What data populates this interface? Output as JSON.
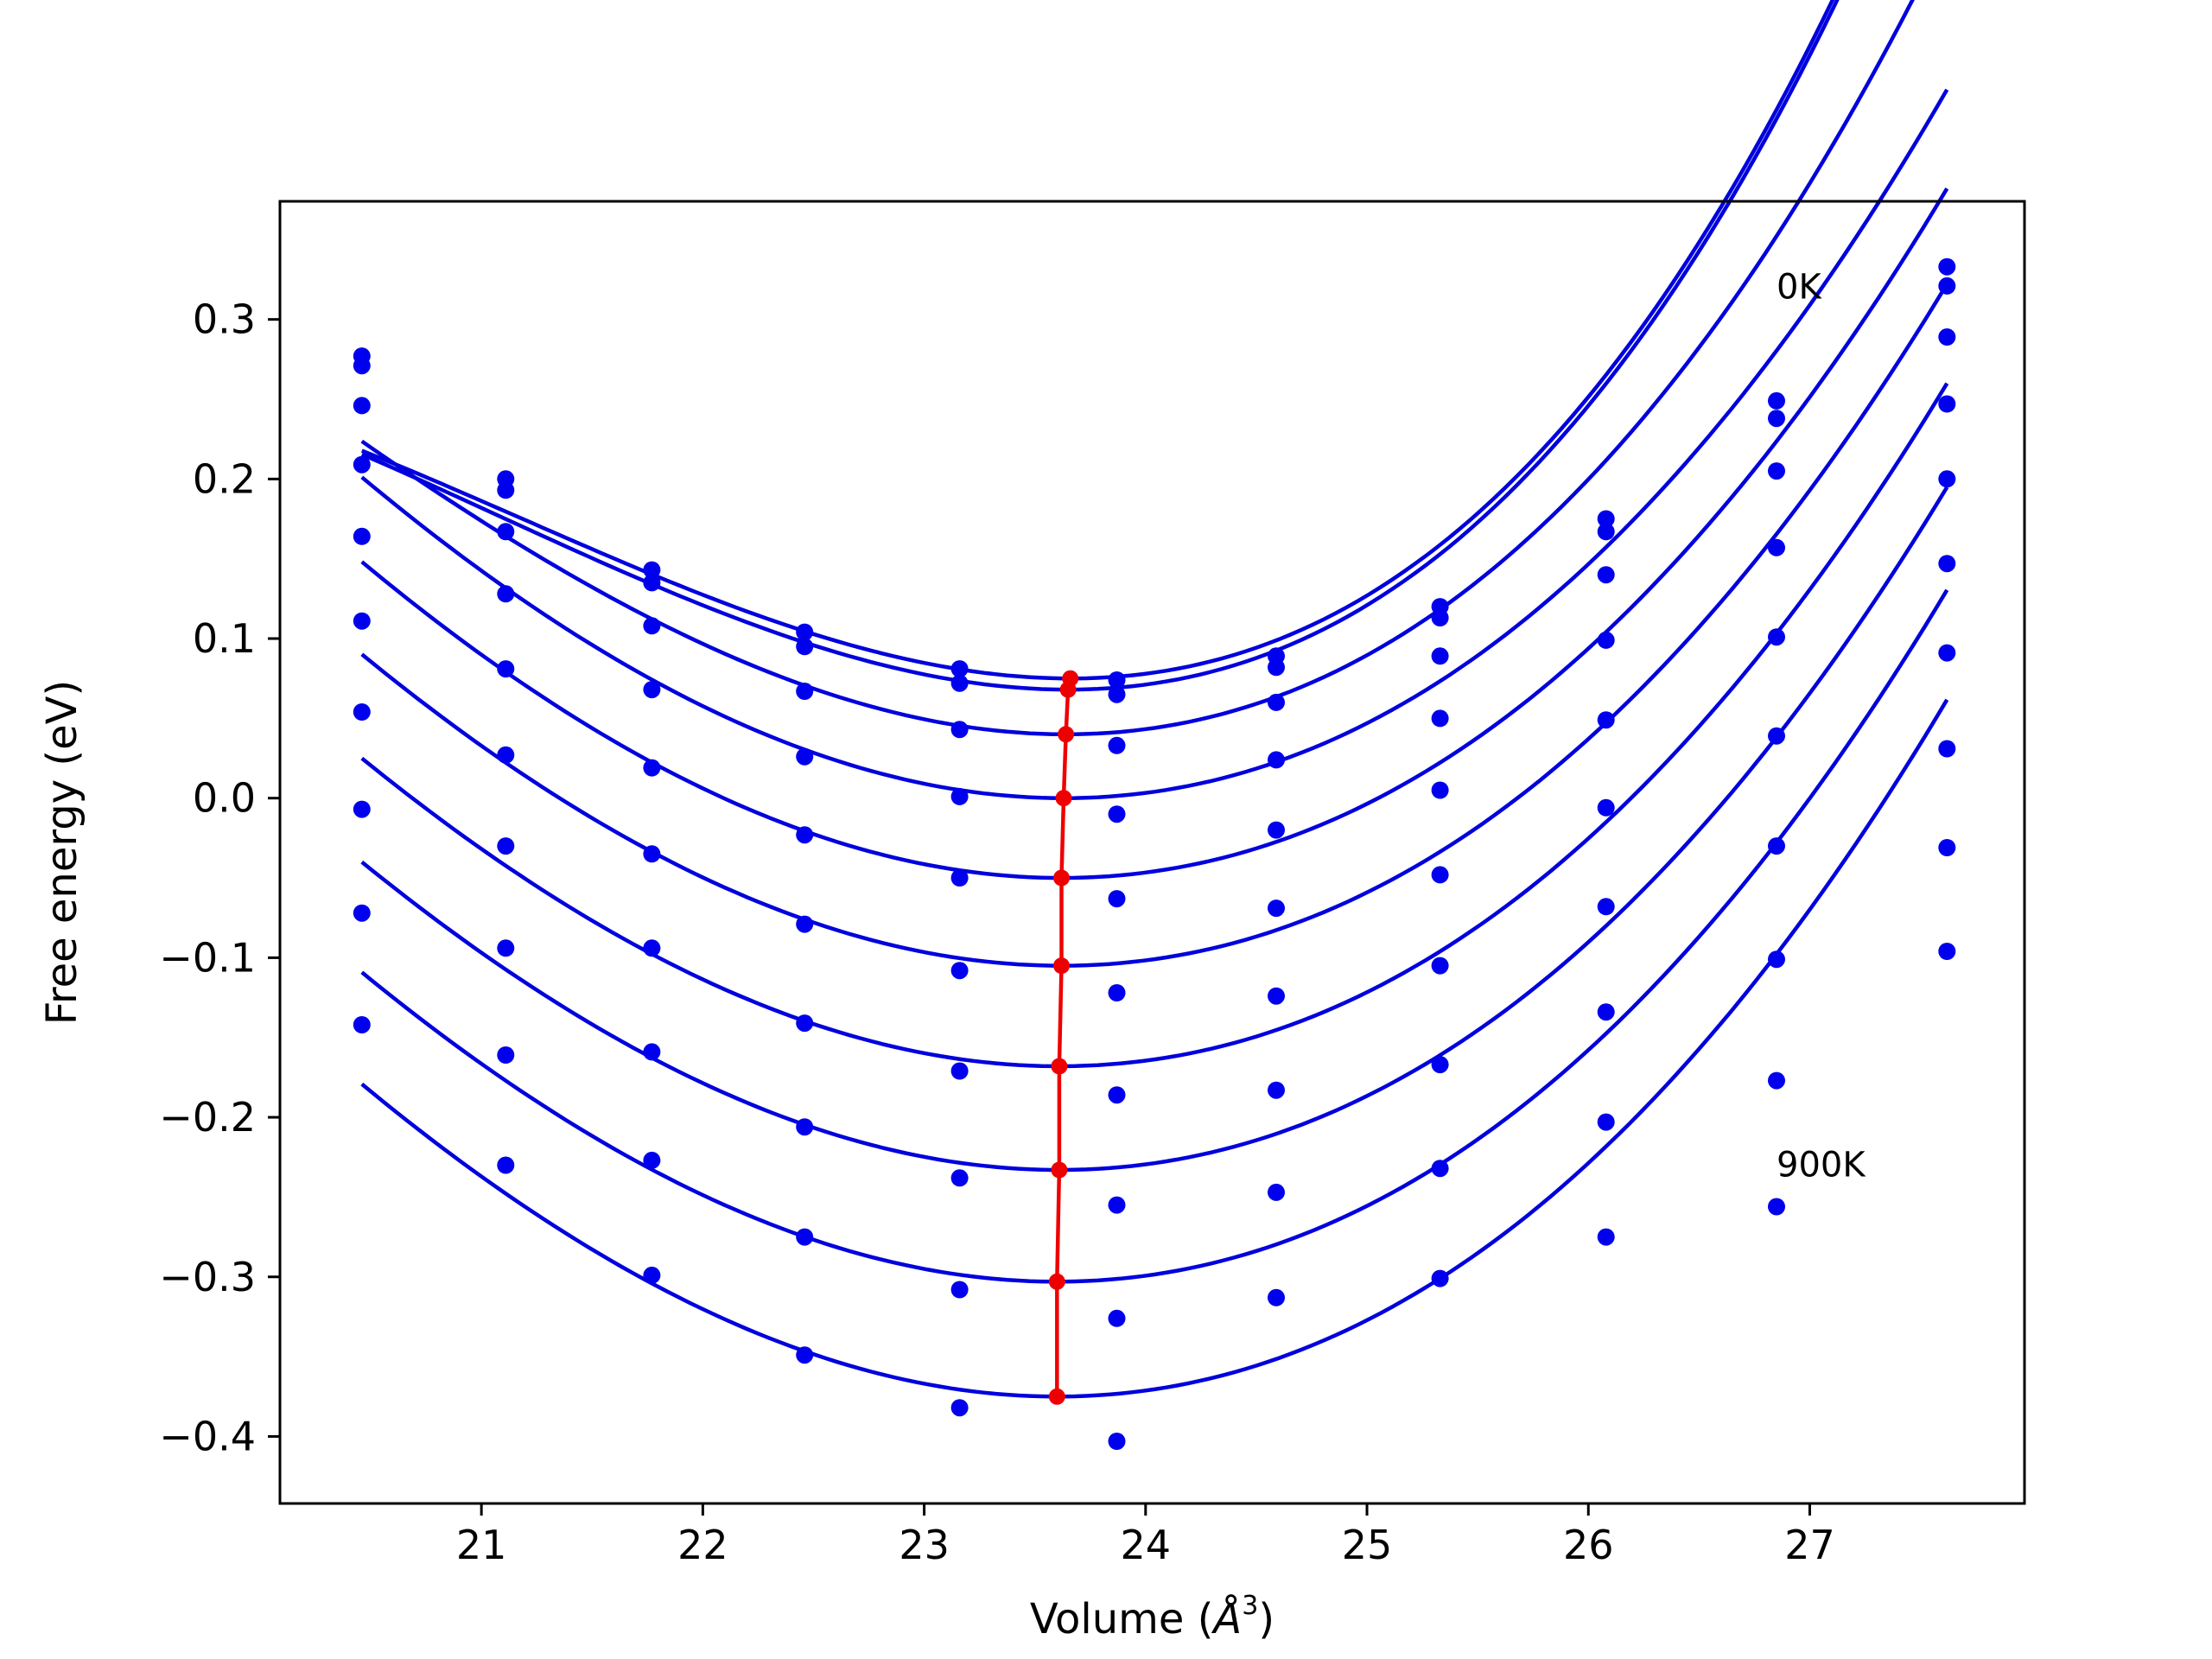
{
  "chart_data": {
    "type": "scatter",
    "title": "",
    "xlabel": "Volume (",
    "xlabel_symbol": "Å",
    "xlabel_exponent": "3",
    "xlabel_close": ")",
    "ylabel": "Free energy (eV)",
    "xlim": [
      20.09,
      27.97
    ],
    "ylim": [
      -0.442,
      0.374
    ],
    "xticks": [
      21,
      22,
      23,
      24,
      25,
      26,
      27
    ],
    "yticks": [
      0.3,
      0.2,
      0.1,
      0.0,
      -0.1,
      -0.2,
      -0.3,
      -0.4
    ],
    "ytick_labels": [
      "0.3",
      "0.2",
      "0.1",
      "0.0",
      "−0.1",
      "−0.2",
      "−0.3",
      "−0.4"
    ],
    "grid": false,
    "annotations": [
      {
        "text": "0K",
        "x": 26.85,
        "y": 0.313
      },
      {
        "text": "900K",
        "x": 26.85,
        "y": -0.237
      }
    ],
    "colors": {
      "points": "#0000ee",
      "fit_lines": "#0000dd",
      "minimum_line": "#ee0000"
    },
    "x": [
      20.46,
      21.11,
      21.77,
      22.46,
      23.16,
      23.87,
      24.59,
      25.33,
      26.08,
      26.85,
      27.62
    ],
    "point_series": [
      {
        "values": [
          0.277,
          0.2,
          0.143,
          0.104,
          0.081,
          0.074,
          0.089,
          0.12,
          0.175,
          0.249,
          0.333
        ]
      },
      {
        "values": [
          0.271,
          0.193,
          0.135,
          0.095,
          0.072,
          0.065,
          0.082,
          0.113,
          0.167,
          0.238,
          0.321
        ]
      },
      {
        "values": [
          0.246,
          0.167,
          0.108,
          0.067,
          0.043,
          0.033,
          0.06,
          0.089,
          0.14,
          0.205,
          0.289
        ]
      },
      {
        "values": [
          0.209,
          0.128,
          0.068,
          0.026,
          0.001,
          -0.01,
          0.024,
          0.05,
          0.099,
          0.157,
          0.247
        ]
      },
      {
        "values": [
          0.164,
          0.081,
          0.019,
          -0.023,
          -0.05,
          -0.063,
          -0.02,
          0.005,
          0.049,
          0.101,
          0.2
        ]
      },
      {
        "values": [
          0.111,
          0.027,
          -0.035,
          -0.079,
          -0.108,
          -0.122,
          -0.069,
          -0.048,
          -0.006,
          0.039,
          0.147
        ]
      },
      {
        "values": [
          0.054,
          -0.03,
          -0.094,
          -0.141,
          -0.171,
          -0.186,
          -0.124,
          -0.105,
          -0.068,
          -0.03,
          0.091
        ]
      },
      {
        "values": [
          -0.007,
          -0.094,
          -0.159,
          -0.206,
          -0.238,
          -0.255,
          -0.183,
          -0.167,
          -0.134,
          -0.101,
          0.031
        ]
      },
      {
        "values": [
          -0.072,
          -0.161,
          -0.227,
          -0.275,
          -0.308,
          -0.326,
          -0.247,
          -0.232,
          -0.203,
          -0.177,
          -0.031
        ]
      },
      {
        "values": [
          -0.142,
          -0.23,
          -0.299,
          -0.349,
          -0.382,
          -0.403,
          -0.313,
          -0.301,
          -0.275,
          -0.256,
          -0.096
        ]
      }
    ],
    "fit_curves": [
      {
        "v0": 23.66,
        "e0": 0.075,
        "a": 0.0245,
        "b": 0.0033,
        "x_start": 20.46,
        "x_end": 27.62
      },
      {
        "v0": 23.65,
        "e0": 0.068,
        "a": 0.0247,
        "b": 0.0032,
        "x_start": 20.46,
        "x_end": 27.62
      },
      {
        "v0": 23.64,
        "e0": 0.04,
        "a": 0.0242,
        "b": 0.0019,
        "x_start": 20.46,
        "x_end": 27.62
      },
      {
        "v0": 23.63,
        "e0": 0.0,
        "a": 0.0235,
        "b": 0.0011,
        "x_start": 20.46,
        "x_end": 27.62
      },
      {
        "v0": 23.62,
        "e0": -0.05,
        "a": 0.023,
        "b": 0.001,
        "x_start": 20.46,
        "x_end": 27.62
      },
      {
        "v0": 23.62,
        "e0": -0.105,
        "a": 0.0227,
        "b": 0.001,
        "x_start": 20.46,
        "x_end": 27.62
      },
      {
        "v0": 23.61,
        "e0": -0.168,
        "a": 0.0226,
        "b": 0.001,
        "x_start": 20.46,
        "x_end": 27.62
      },
      {
        "v0": 23.61,
        "e0": -0.233,
        "a": 0.0226,
        "b": 0.001,
        "x_start": 20.46,
        "x_end": 27.62
      },
      {
        "v0": 23.6,
        "e0": -0.303,
        "a": 0.0228,
        "b": 0.001,
        "x_start": 20.46,
        "x_end": 27.62
      },
      {
        "v0": 23.6,
        "e0": -0.375,
        "a": 0.023,
        "b": 0.001,
        "x_start": 20.46,
        "x_end": 27.62
      }
    ],
    "minimum_line": {
      "x": [
        23.66,
        23.65,
        23.64,
        23.63,
        23.62,
        23.62,
        23.61,
        23.61,
        23.6,
        23.6
      ],
      "y": [
        0.075,
        0.068,
        0.04,
        0.0,
        -0.05,
        -0.105,
        -0.168,
        -0.233,
        -0.303,
        -0.375
      ]
    }
  }
}
